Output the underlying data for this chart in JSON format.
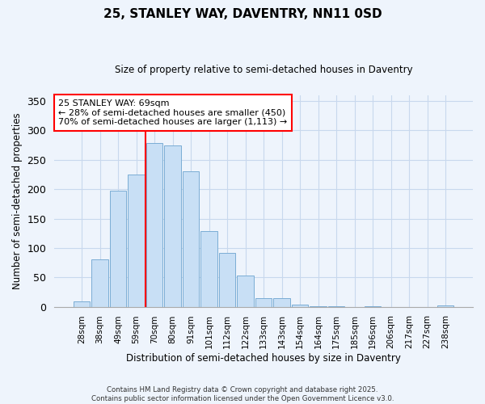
{
  "title": "25, STANLEY WAY, DAVENTRY, NN11 0SD",
  "subtitle": "Size of property relative to semi-detached houses in Daventry",
  "xlabel": "Distribution of semi-detached houses by size in Daventry",
  "ylabel": "Number of semi-detached properties",
  "bar_labels": [
    "28sqm",
    "38sqm",
    "49sqm",
    "59sqm",
    "70sqm",
    "80sqm",
    "91sqm",
    "101sqm",
    "112sqm",
    "122sqm",
    "133sqm",
    "143sqm",
    "154sqm",
    "164sqm",
    "175sqm",
    "185sqm",
    "196sqm",
    "206sqm",
    "217sqm",
    "227sqm",
    "238sqm"
  ],
  "bar_values": [
    9,
    80,
    197,
    225,
    278,
    275,
    231,
    129,
    91,
    53,
    14,
    14,
    4,
    1,
    1,
    0,
    1,
    0,
    0,
    0,
    2
  ],
  "bar_color": "#c8dff5",
  "bar_edge_color": "#7badd4",
  "vline_x_index": 4,
  "vline_color": "red",
  "annotation_title": "25 STANLEY WAY: 69sqm",
  "annotation_line1": "← 28% of semi-detached houses are smaller (450)",
  "annotation_line2": "70% of semi-detached houses are larger (1,113) →",
  "annotation_box_color": "white",
  "annotation_box_edge": "red",
  "ylim": [
    0,
    360
  ],
  "yticks": [
    0,
    50,
    100,
    150,
    200,
    250,
    300,
    350
  ],
  "footer_line1": "Contains HM Land Registry data © Crown copyright and database right 2025.",
  "footer_line2": "Contains public sector information licensed under the Open Government Licence v3.0.",
  "bg_color": "#eef4fc",
  "grid_color": "#c8d8ed"
}
